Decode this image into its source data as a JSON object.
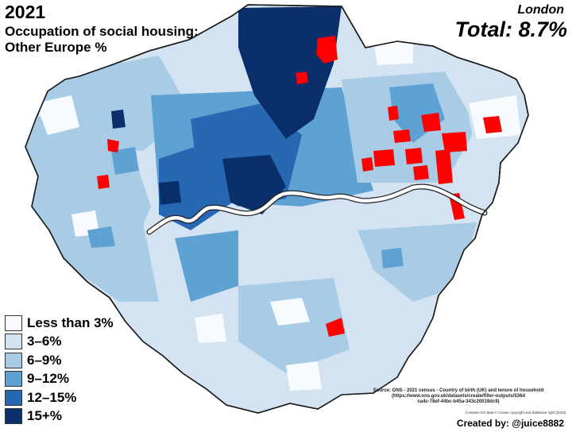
{
  "title": {
    "year": "2021",
    "subtitle_line1": "Occupation of social housing:",
    "subtitle_line2": "Other Europe %"
  },
  "region": "London",
  "total": "Total: 8.7%",
  "legend": [
    {
      "label": "Less than 3%",
      "color": "#f7fbff"
    },
    {
      "label": "3–6%",
      "color": "#d4e3f2"
    },
    {
      "label": "6–9%",
      "color": "#a9cce6"
    },
    {
      "label": "9–12%",
      "color": "#5ea1d3"
    },
    {
      "label": "12–15%",
      "color": "#2768b3"
    },
    {
      "label": "15+%",
      "color": "#0b2f6b"
    }
  ],
  "highlight_color": "#ff0000",
  "river_color": "#ffffff",
  "source": {
    "line1": "Source: ONS - 2021 census - Country of birth (UK) and tenure of household",
    "line2": "(https://www.ons.gov.uk/datasets/create/filter-outputs/536d",
    "line3": "ca4c-78ef-44bc-b45a-343c20019dc9)"
  },
  "copyright": "Contains OS data © Crown copyright and database right [2023]",
  "credit": "Created by: @juice8882"
}
